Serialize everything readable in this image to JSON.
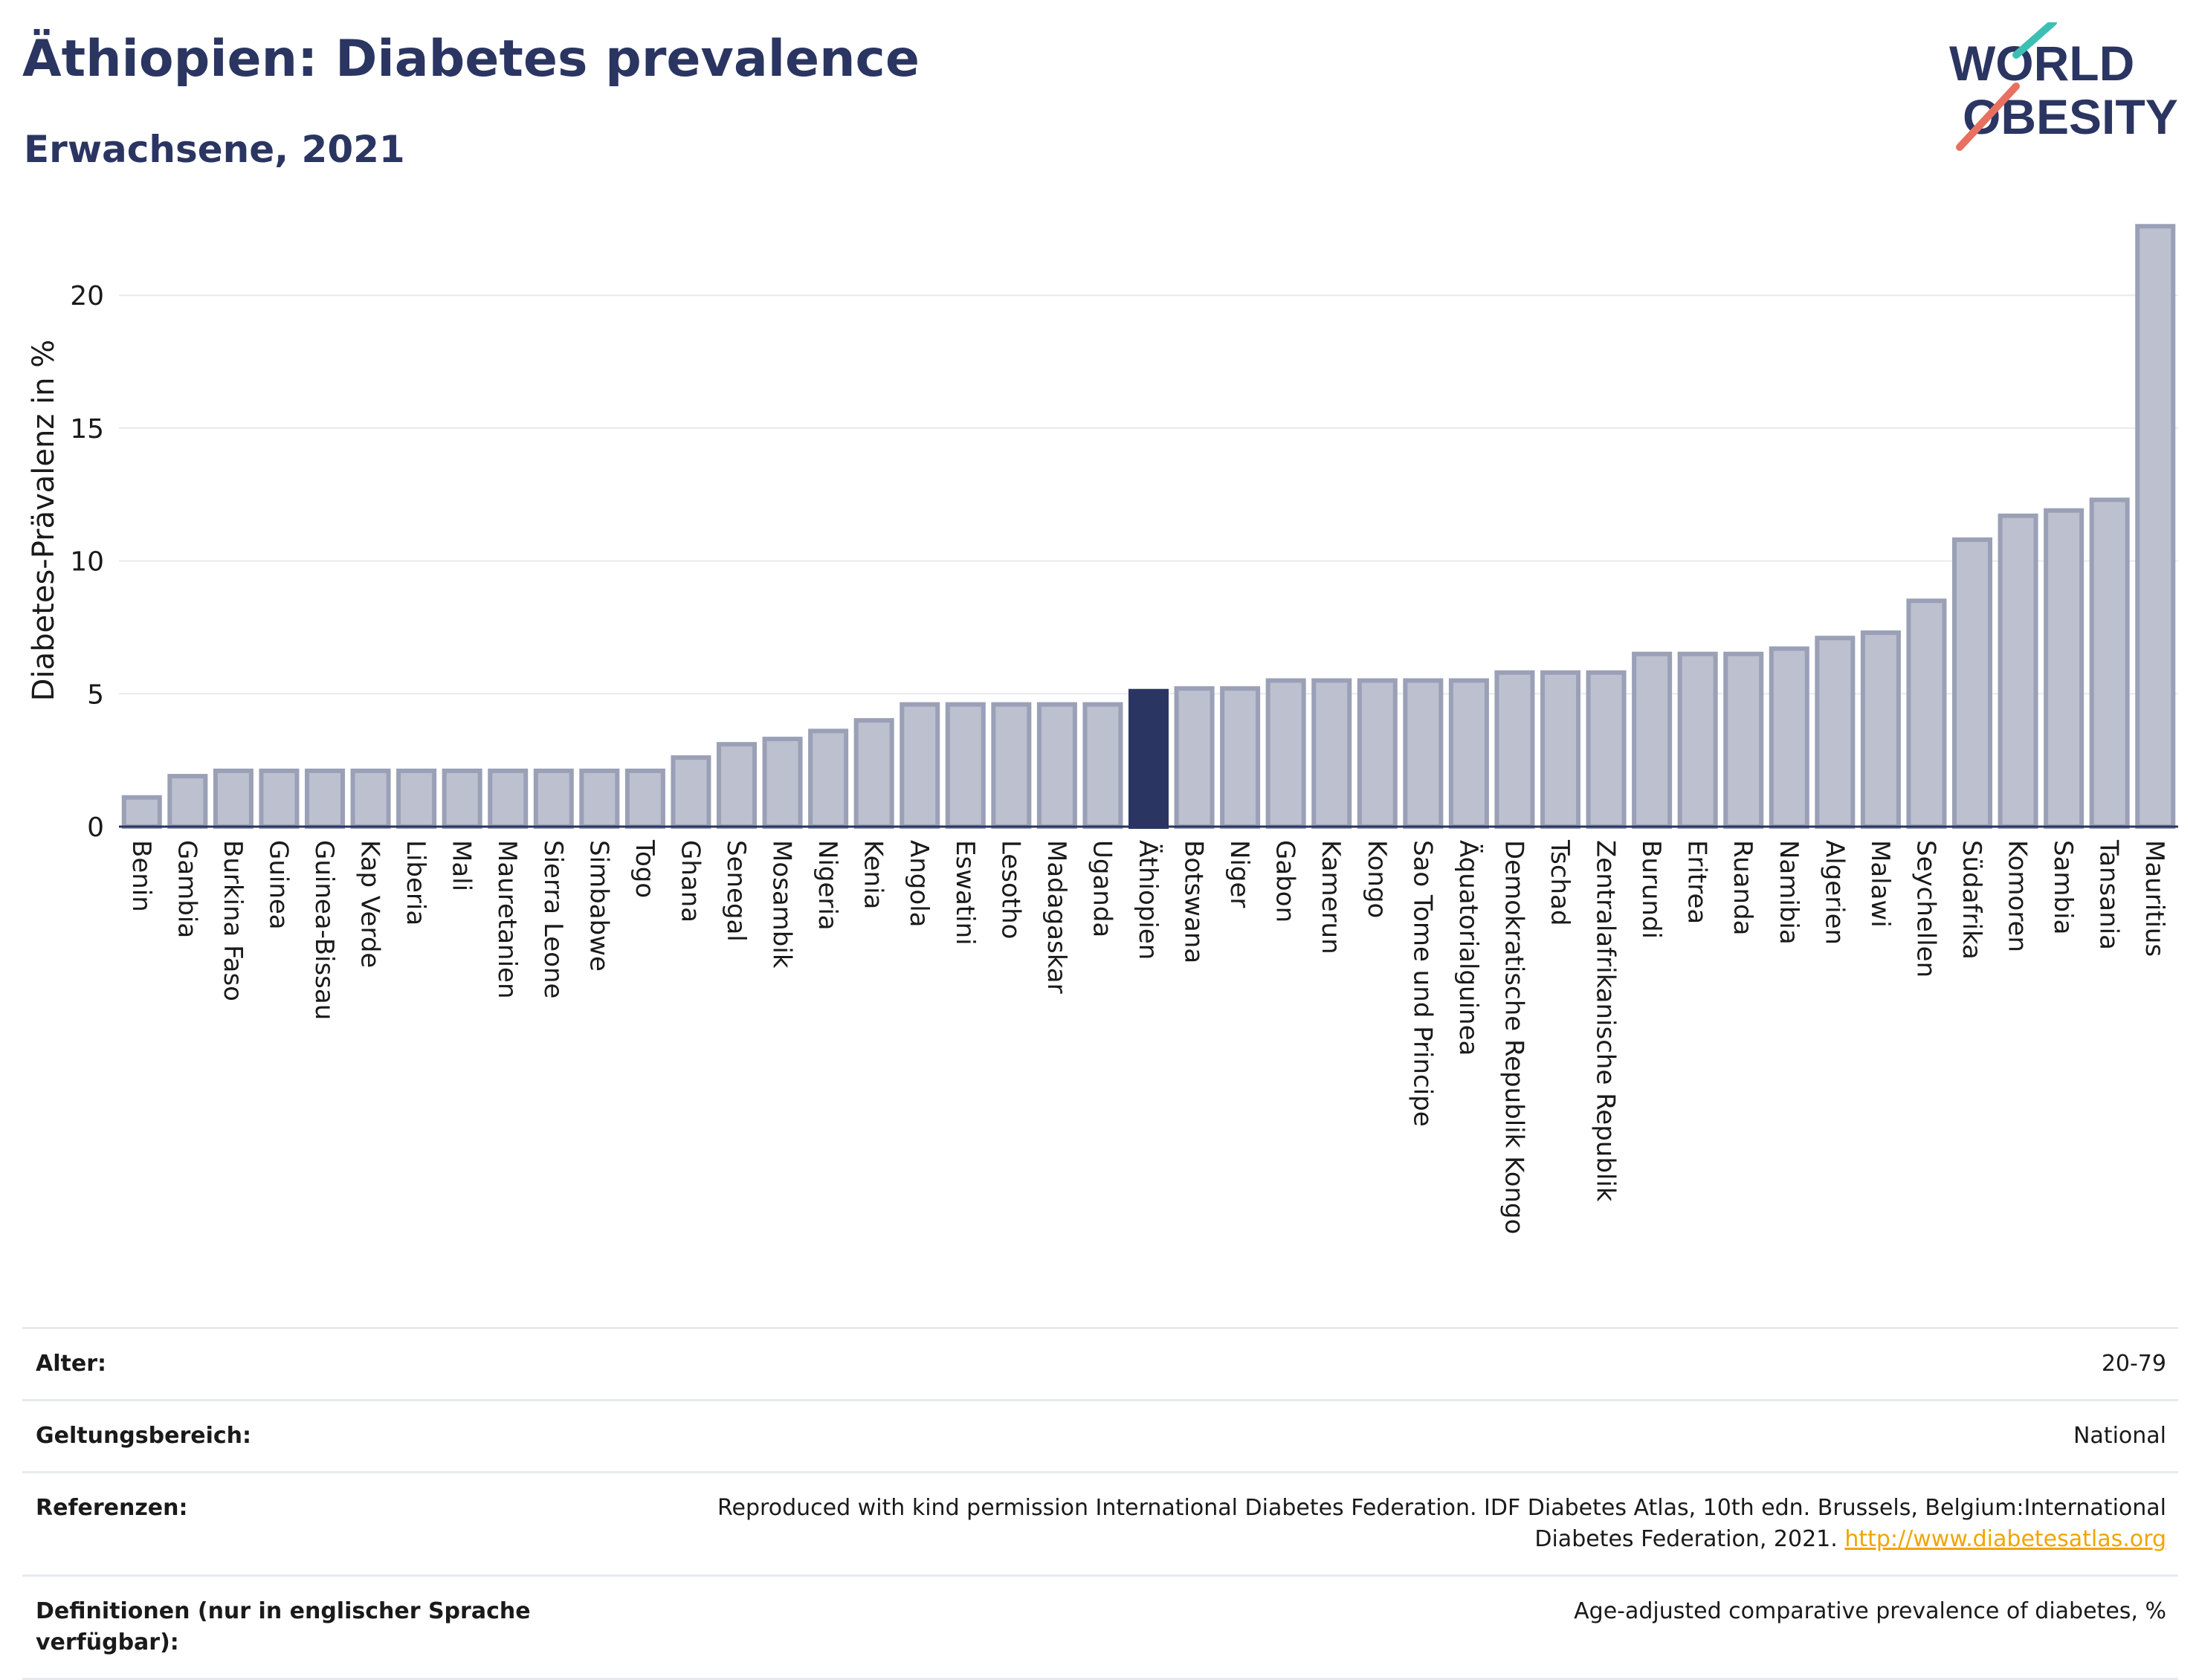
{
  "header": {
    "title": "Äthiopien: Diabetes prevalence",
    "subtitle": "Erwachsene, 2021"
  },
  "logo": {
    "line1": "WORLD",
    "line2": "OBESITY"
  },
  "colors": {
    "highlight": "#2b3561",
    "bar_fill": "#bcc0cf",
    "bar_stroke": "#9aa0b6",
    "title": "#2b3561",
    "link": "#f0a500"
  },
  "chart_data": {
    "type": "bar",
    "ylabel": "Diabetes-Prävalenz in %",
    "ylim": [
      0,
      23
    ],
    "yticks": [
      0,
      5,
      10,
      15,
      20
    ],
    "grid": true,
    "highlight": "Äthiopien",
    "categories": [
      "Benin",
      "Gambia",
      "Burkina Faso",
      "Guinea",
      "Guinea-Bissau",
      "Kap Verde",
      "Liberia",
      "Mali",
      "Mauretanien",
      "Sierra Leone",
      "Simbabwe",
      "Togo",
      "Ghana",
      "Senegal",
      "Mosambik",
      "Nigeria",
      "Kenia",
      "Angola",
      "Eswatini",
      "Lesotho",
      "Madagaskar",
      "Uganda",
      "Äthiopien",
      "Botswana",
      "Niger",
      "Gabon",
      "Kamerun",
      "Kongo",
      "Sao Tome und Principe",
      "Äquatorialguinea",
      "Demokratische Republik Kongo",
      "Tschad",
      "Zentralafrikanische Republik",
      "Burundi",
      "Eritrea",
      "Ruanda",
      "Namibia",
      "Algerien",
      "Malawi",
      "Seychellen",
      "Südafrika",
      "Komoren",
      "Sambia",
      "Tansania",
      "Mauritius"
    ],
    "values": [
      1.1,
      1.9,
      2.1,
      2.1,
      2.1,
      2.1,
      2.1,
      2.1,
      2.1,
      2.1,
      2.1,
      2.1,
      2.6,
      3.1,
      3.3,
      3.6,
      4.0,
      4.6,
      4.6,
      4.6,
      4.6,
      4.6,
      5.1,
      5.2,
      5.2,
      5.5,
      5.5,
      5.5,
      5.5,
      5.5,
      5.8,
      5.8,
      5.8,
      6.5,
      6.5,
      6.5,
      6.7,
      7.1,
      7.3,
      8.5,
      10.8,
      11.7,
      11.9,
      12.3,
      22.6
    ]
  },
  "meta": {
    "rows": [
      {
        "label": "Alter:",
        "value": "20-79"
      },
      {
        "label": "Geltungsbereich:",
        "value": "National"
      },
      {
        "label": "Referenzen:",
        "value": "Reproduced with kind permission International Diabetes Federation.  IDF Diabetes Atlas, 10th edn. Brussels, Belgium:International Diabetes Federation, 2021.",
        "link": "http://www.diabetesatlas.org"
      },
      {
        "label": "Definitionen (nur in englischer Sprache verfügbar):",
        "value": "Age-adjusted comparative prevalence of diabetes, %"
      }
    ]
  }
}
